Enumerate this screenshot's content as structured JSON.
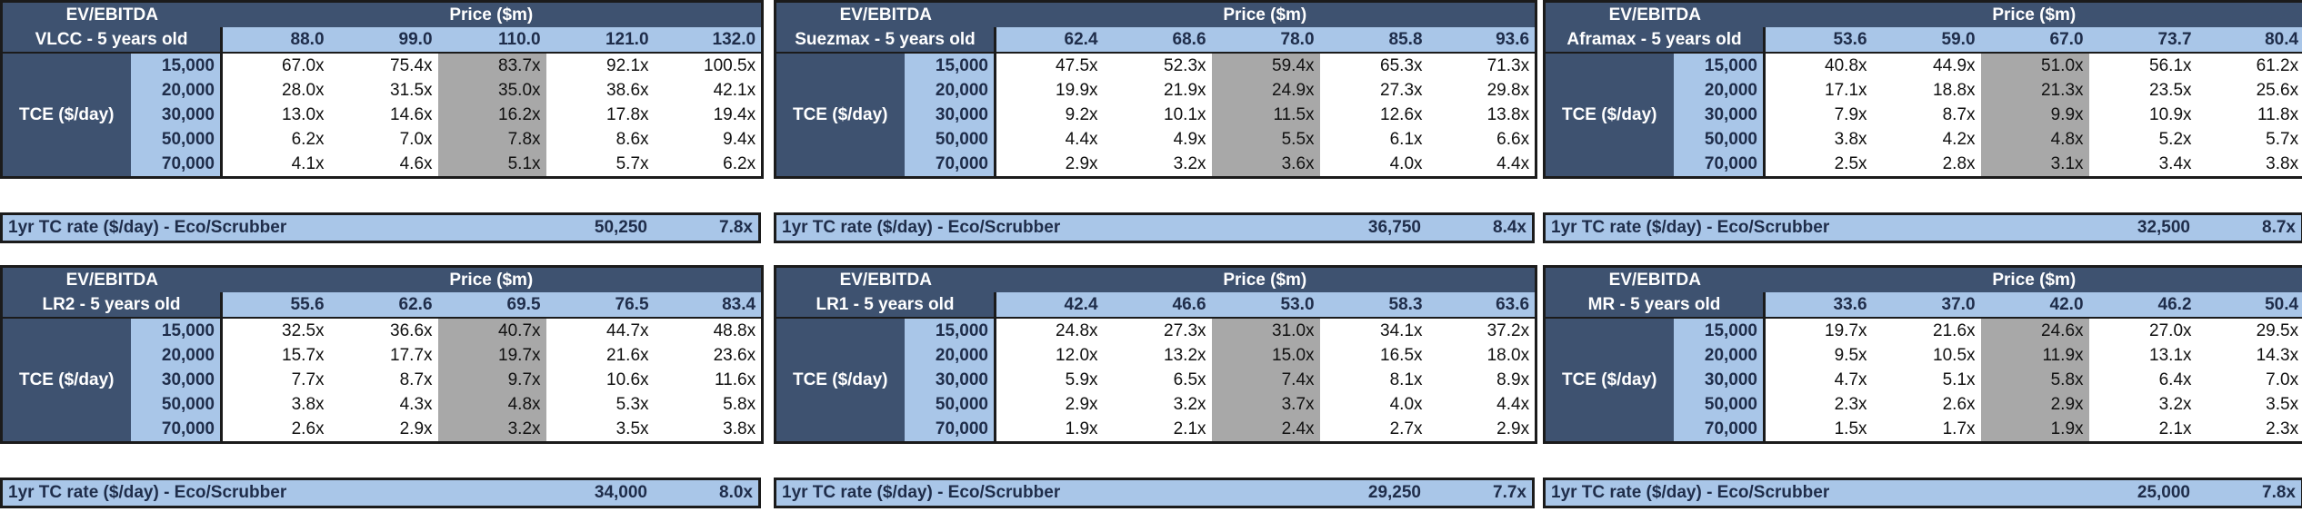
{
  "labels": {
    "ev_ebitda": "EV/EBITDA",
    "price": "Price ($m)",
    "tce": "TCE ($/day)",
    "tc_rate": "1yr TC rate ($/day) - Eco/Scrubber"
  },
  "panels": [
    {
      "vessel": "VLCC - 5 years old",
      "prices": [
        "88.0",
        "99.0",
        "110.0",
        "121.0",
        "132.0"
      ],
      "tce": [
        "15,000",
        "20,000",
        "30,000",
        "50,000",
        "70,000"
      ],
      "rows": [
        [
          "67.0x",
          "75.4x",
          "83.7x",
          "92.1x",
          "100.5x"
        ],
        [
          "28.0x",
          "31.5x",
          "35.0x",
          "38.6x",
          "42.1x"
        ],
        [
          "13.0x",
          "14.6x",
          "16.2x",
          "17.8x",
          "19.4x"
        ],
        [
          "6.2x",
          "7.0x",
          "7.8x",
          "8.6x",
          "9.4x"
        ],
        [
          "4.1x",
          "4.6x",
          "5.1x",
          "5.7x",
          "6.2x"
        ]
      ],
      "tc_rate": "50,250",
      "tc_multiple": "7.8x"
    },
    {
      "vessel": "Suezmax - 5 years old",
      "prices": [
        "62.4",
        "68.6",
        "78.0",
        "85.8",
        "93.6"
      ],
      "tce": [
        "15,000",
        "20,000",
        "30,000",
        "50,000",
        "70,000"
      ],
      "rows": [
        [
          "47.5x",
          "52.3x",
          "59.4x",
          "65.3x",
          "71.3x"
        ],
        [
          "19.9x",
          "21.9x",
          "24.9x",
          "27.3x",
          "29.8x"
        ],
        [
          "9.2x",
          "10.1x",
          "11.5x",
          "12.6x",
          "13.8x"
        ],
        [
          "4.4x",
          "4.9x",
          "5.5x",
          "6.1x",
          "6.6x"
        ],
        [
          "2.9x",
          "3.2x",
          "3.6x",
          "4.0x",
          "4.4x"
        ]
      ],
      "tc_rate": "36,750",
      "tc_multiple": "8.4x"
    },
    {
      "vessel": "Aframax - 5 years old",
      "prices": [
        "53.6",
        "59.0",
        "67.0",
        "73.7",
        "80.4"
      ],
      "tce": [
        "15,000",
        "20,000",
        "30,000",
        "50,000",
        "70,000"
      ],
      "rows": [
        [
          "40.8x",
          "44.9x",
          "51.0x",
          "56.1x",
          "61.2x"
        ],
        [
          "17.1x",
          "18.8x",
          "21.3x",
          "23.5x",
          "25.6x"
        ],
        [
          "7.9x",
          "8.7x",
          "9.9x",
          "10.9x",
          "11.8x"
        ],
        [
          "3.8x",
          "4.2x",
          "4.8x",
          "5.2x",
          "5.7x"
        ],
        [
          "2.5x",
          "2.8x",
          "3.1x",
          "3.4x",
          "3.8x"
        ]
      ],
      "tc_rate": "32,500",
      "tc_multiple": "8.7x"
    },
    {
      "vessel": "LR2 - 5 years old",
      "prices": [
        "55.6",
        "62.6",
        "69.5",
        "76.5",
        "83.4"
      ],
      "tce": [
        "15,000",
        "20,000",
        "30,000",
        "50,000",
        "70,000"
      ],
      "rows": [
        [
          "32.5x",
          "36.6x",
          "40.7x",
          "44.7x",
          "48.8x"
        ],
        [
          "15.7x",
          "17.7x",
          "19.7x",
          "21.6x",
          "23.6x"
        ],
        [
          "7.7x",
          "8.7x",
          "9.7x",
          "10.6x",
          "11.6x"
        ],
        [
          "3.8x",
          "4.3x",
          "4.8x",
          "5.3x",
          "5.8x"
        ],
        [
          "2.6x",
          "2.9x",
          "3.2x",
          "3.5x",
          "3.8x"
        ]
      ],
      "tc_rate": "34,000",
      "tc_multiple": "8.0x"
    },
    {
      "vessel": "LR1 - 5 years old",
      "prices": [
        "42.4",
        "46.6",
        "53.0",
        "58.3",
        "63.6"
      ],
      "tce": [
        "15,000",
        "20,000",
        "30,000",
        "50,000",
        "70,000"
      ],
      "rows": [
        [
          "24.8x",
          "27.3x",
          "31.0x",
          "34.1x",
          "37.2x"
        ],
        [
          "12.0x",
          "13.2x",
          "15.0x",
          "16.5x",
          "18.0x"
        ],
        [
          "5.9x",
          "6.5x",
          "7.4x",
          "8.1x",
          "8.9x"
        ],
        [
          "2.9x",
          "3.2x",
          "3.7x",
          "4.0x",
          "4.4x"
        ],
        [
          "1.9x",
          "2.1x",
          "2.4x",
          "2.7x",
          "2.9x"
        ]
      ],
      "tc_rate": "29,250",
      "tc_multiple": "7.7x"
    },
    {
      "vessel": "MR - 5 years old",
      "prices": [
        "33.6",
        "37.0",
        "42.0",
        "46.2",
        "50.4"
      ],
      "tce": [
        "15,000",
        "20,000",
        "30,000",
        "50,000",
        "70,000"
      ],
      "rows": [
        [
          "19.7x",
          "21.6x",
          "24.6x",
          "27.0x",
          "29.5x"
        ],
        [
          "9.5x",
          "10.5x",
          "11.9x",
          "13.1x",
          "14.3x"
        ],
        [
          "4.7x",
          "5.1x",
          "5.8x",
          "6.4x",
          "7.0x"
        ],
        [
          "2.3x",
          "2.6x",
          "2.9x",
          "3.2x",
          "3.5x"
        ],
        [
          "1.5x",
          "1.7x",
          "1.9x",
          "2.1x",
          "2.3x"
        ]
      ],
      "tc_rate": "25,000",
      "tc_multiple": "7.8x"
    }
  ],
  "colors": {
    "header_dark": "#3e5270",
    "header_light": "#a9c6e8",
    "highlight_column": "#a8a8a8",
    "border": "#1b1b1b"
  }
}
